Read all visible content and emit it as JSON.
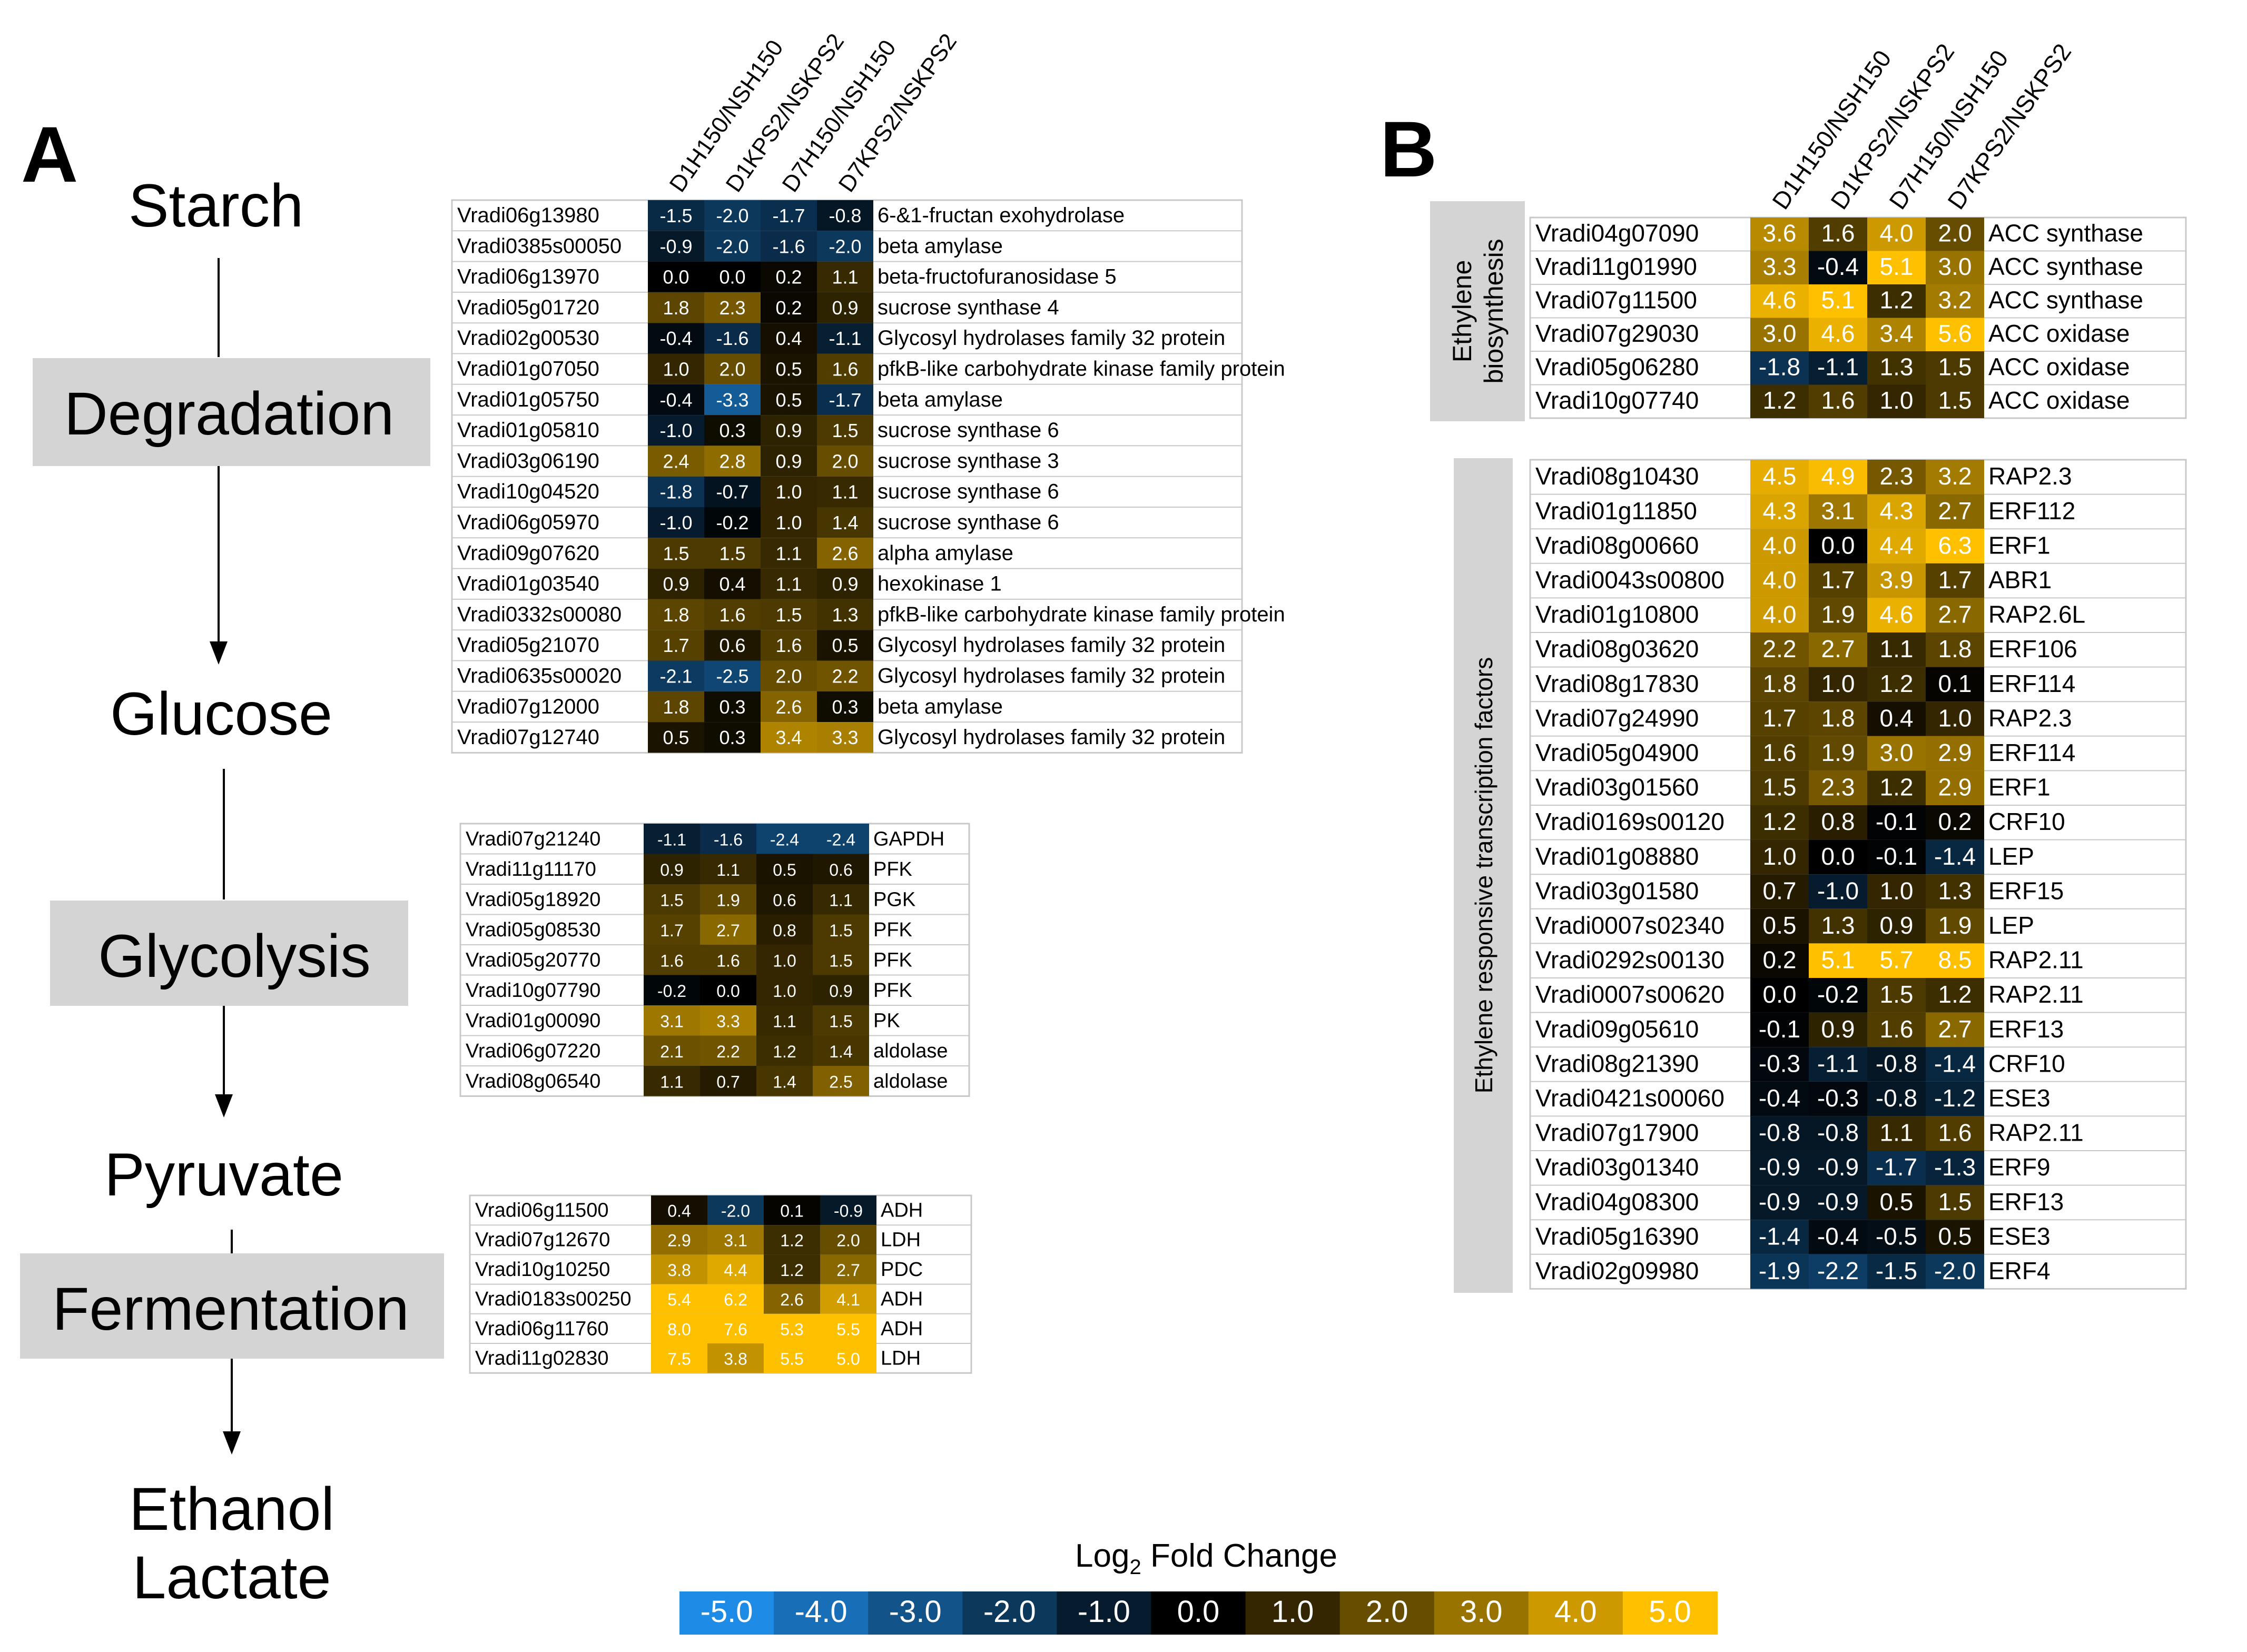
{
  "colors": {
    "negative": "#1e8be6",
    "zero": "#000000",
    "positive": "#ffc000",
    "pathway_box": "#d4d4d4",
    "border": "#c8c8c8"
  },
  "panel_a": {
    "label": "A",
    "pathway": {
      "starch": "Starch",
      "degradation": "Degradation",
      "glucose": "Glucose",
      "glycolysis": "Glycolysis",
      "pyruvate": "Pyruvate",
      "fermentation": "Fermentation",
      "ethanol": "Ethanol",
      "lactate": "Lactate"
    }
  },
  "panel_b": {
    "label": "B",
    "group1_label_line1": "Ethylene",
    "group1_label_line2": "biosynthesis",
    "group2_label": "Ethylene responsive transcription factors"
  },
  "columns": [
    "D1H150/NSH150",
    "D1KPS2/NSKPS2",
    "D7H150/NSH150",
    "D7KPS2/NSKPS2"
  ],
  "legend": {
    "title": "Log",
    "title_sub": "2",
    "title_rest": " Fold Change",
    "ticks": [
      "-5.0",
      "-4.0",
      "-3.0",
      "-2.0",
      "-1.0",
      "0.0",
      "1.0",
      "2.0",
      "3.0",
      "4.0",
      "5.0"
    ]
  },
  "chart_data": [
    {
      "type": "heatmap",
      "title": "Starch degradation",
      "columns": [
        "D1H150/NSH150",
        "D1KPS2/NSKPS2",
        "D7H150/NSH150",
        "D7KPS2/NSKPS2"
      ],
      "rows": [
        {
          "gene": "Vradi06g13980",
          "values": [
            -1.5,
            -2.0,
            -1.7,
            -0.8
          ],
          "annotation": "6-&1-fructan exohydrolase"
        },
        {
          "gene": "Vradi0385s00050",
          "values": [
            -0.9,
            -2.0,
            -1.6,
            -2.0
          ],
          "annotation": "beta amylase"
        },
        {
          "gene": "Vradi06g13970",
          "values": [
            0.0,
            0.0,
            0.2,
            1.1
          ],
          "annotation": "beta-fructofuranosidase 5"
        },
        {
          "gene": "Vradi05g01720",
          "values": [
            1.8,
            2.3,
            0.2,
            0.9
          ],
          "annotation": "sucrose synthase 4"
        },
        {
          "gene": "Vradi02g00530",
          "values": [
            -0.4,
            -1.6,
            0.4,
            -1.1
          ],
          "annotation": "Glycosyl hydrolases family 32 protein"
        },
        {
          "gene": "Vradi01g07050",
          "values": [
            1.0,
            2.0,
            0.5,
            1.6
          ],
          "annotation": "pfkB-like carbohydrate kinase family protein"
        },
        {
          "gene": "Vradi01g05750",
          "values": [
            -0.4,
            -3.3,
            0.5,
            -1.7
          ],
          "annotation": "beta amylase"
        },
        {
          "gene": "Vradi01g05810",
          "values": [
            -1.0,
            0.3,
            0.9,
            1.5
          ],
          "annotation": "sucrose synthase 6"
        },
        {
          "gene": "Vradi03g06190",
          "values": [
            2.4,
            2.8,
            0.9,
            2.0
          ],
          "annotation": "sucrose synthase 3"
        },
        {
          "gene": "Vradi10g04520",
          "values": [
            -1.8,
            -0.7,
            1.0,
            1.1
          ],
          "annotation": "sucrose synthase 6"
        },
        {
          "gene": "Vradi06g05970",
          "values": [
            -1.0,
            -0.2,
            1.0,
            1.4
          ],
          "annotation": "sucrose synthase 6"
        },
        {
          "gene": "Vradi09g07620",
          "values": [
            1.5,
            1.5,
            1.1,
            2.6
          ],
          "annotation": "alpha amylase"
        },
        {
          "gene": "Vradi01g03540",
          "values": [
            0.9,
            0.4,
            1.1,
            0.9
          ],
          "annotation": "hexokinase 1"
        },
        {
          "gene": "Vradi0332s00080",
          "values": [
            1.8,
            1.6,
            1.5,
            1.3
          ],
          "annotation": "pfkB-like carbohydrate kinase family protein"
        },
        {
          "gene": "Vradi05g21070",
          "values": [
            1.7,
            0.6,
            1.6,
            0.5
          ],
          "annotation": "Glycosyl hydrolases family 32 protein"
        },
        {
          "gene": "Vradi0635s00020",
          "values": [
            -2.1,
            -2.5,
            2.0,
            2.2
          ],
          "annotation": "Glycosyl hydrolases family 32 protein"
        },
        {
          "gene": "Vradi07g12000",
          "values": [
            1.8,
            0.3,
            2.6,
            0.3
          ],
          "annotation": "beta amylase"
        },
        {
          "gene": "Vradi07g12740",
          "values": [
            0.5,
            0.3,
            3.4,
            3.3
          ],
          "annotation": "Glycosyl hydrolases family 32 protein"
        }
      ]
    },
    {
      "type": "heatmap",
      "title": "Glycolysis",
      "columns": [
        "D1H150/NSH150",
        "D1KPS2/NSKPS2",
        "D7H150/NSH150",
        "D7KPS2/NSKPS2"
      ],
      "rows": [
        {
          "gene": "Vradi07g21240",
          "values": [
            -1.1,
            -1.6,
            -2.4,
            -2.4
          ],
          "annotation": "GAPDH"
        },
        {
          "gene": "Vradi11g11170",
          "values": [
            0.9,
            1.1,
            0.5,
            0.6
          ],
          "annotation": "PFK"
        },
        {
          "gene": "Vradi05g18920",
          "values": [
            1.5,
            1.9,
            0.6,
            1.1
          ],
          "annotation": "PGK"
        },
        {
          "gene": "Vradi05g08530",
          "values": [
            1.7,
            2.7,
            0.8,
            1.5
          ],
          "annotation": "PFK"
        },
        {
          "gene": "Vradi05g20770",
          "values": [
            1.6,
            1.6,
            1.0,
            1.5
          ],
          "annotation": "PFK"
        },
        {
          "gene": "Vradi10g07790",
          "values": [
            -0.2,
            0.0,
            1.0,
            0.9
          ],
          "annotation": "PFK"
        },
        {
          "gene": "Vradi01g00090",
          "values": [
            3.1,
            3.3,
            1.1,
            1.5
          ],
          "annotation": "PK"
        },
        {
          "gene": "Vradi06g07220",
          "values": [
            2.1,
            2.2,
            1.2,
            1.4
          ],
          "annotation": "aldolase"
        },
        {
          "gene": "Vradi08g06540",
          "values": [
            1.1,
            0.7,
            1.4,
            2.5
          ],
          "annotation": "aldolase"
        }
      ]
    },
    {
      "type": "heatmap",
      "title": "Fermentation",
      "columns": [
        "D1H150/NSH150",
        "D1KPS2/NSKPS2",
        "D7H150/NSH150",
        "D7KPS2/NSKPS2"
      ],
      "rows": [
        {
          "gene": "Vradi06g11500",
          "values": [
            0.4,
            -2.0,
            0.1,
            -0.9
          ],
          "annotation": "ADH"
        },
        {
          "gene": "Vradi07g12670",
          "values": [
            2.9,
            3.1,
            1.2,
            2.0
          ],
          "annotation": "LDH"
        },
        {
          "gene": "Vradi10g10250",
          "values": [
            3.8,
            4.4,
            1.2,
            2.7
          ],
          "annotation": "PDC"
        },
        {
          "gene": "Vradi0183s00250",
          "values": [
            5.4,
            6.2,
            2.6,
            4.1
          ],
          "annotation": "ADH"
        },
        {
          "gene": "Vradi06g11760",
          "values": [
            8.0,
            7.6,
            5.3,
            5.5
          ],
          "annotation": "ADH"
        },
        {
          "gene": "Vradi11g02830",
          "values": [
            7.5,
            3.8,
            5.5,
            5.0
          ],
          "annotation": "LDH"
        }
      ]
    },
    {
      "type": "heatmap",
      "title": "Ethylene biosynthesis",
      "columns": [
        "D1H150/NSH150",
        "D1KPS2/NSKPS2",
        "D7H150/NSH150",
        "D7KPS2/NSKPS2"
      ],
      "rows": [
        {
          "gene": "Vradi04g07090",
          "values": [
            3.6,
            1.6,
            4.0,
            2.0
          ],
          "annotation": "ACC synthase"
        },
        {
          "gene": "Vradi11g01990",
          "values": [
            3.3,
            -0.4,
            5.1,
            3.0
          ],
          "annotation": "ACC synthase"
        },
        {
          "gene": "Vradi07g11500",
          "values": [
            4.6,
            5.1,
            1.2,
            3.2
          ],
          "annotation": "ACC synthase"
        },
        {
          "gene": "Vradi07g29030",
          "values": [
            3.0,
            4.6,
            3.4,
            5.6
          ],
          "annotation": "ACC oxidase"
        },
        {
          "gene": "Vradi05g06280",
          "values": [
            -1.8,
            -1.1,
            1.3,
            1.5
          ],
          "annotation": "ACC oxidase"
        },
        {
          "gene": "Vradi10g07740",
          "values": [
            1.2,
            1.6,
            1.0,
            1.5
          ],
          "annotation": "ACC oxidase"
        }
      ]
    },
    {
      "type": "heatmap",
      "title": "Ethylene responsive transcription factors",
      "columns": [
        "D1H150/NSH150",
        "D1KPS2/NSKPS2",
        "D7H150/NSH150",
        "D7KPS2/NSKPS2"
      ],
      "rows": [
        {
          "gene": "Vradi08g10430",
          "values": [
            4.5,
            4.9,
            2.3,
            3.2
          ],
          "annotation": "RAP2.3"
        },
        {
          "gene": "Vradi01g11850",
          "values": [
            4.3,
            3.1,
            4.3,
            2.7
          ],
          "annotation": "ERF112"
        },
        {
          "gene": "Vradi08g00660",
          "values": [
            4.0,
            0.0,
            4.4,
            6.3
          ],
          "annotation": "ERF1"
        },
        {
          "gene": "Vradi0043s00800",
          "values": [
            4.0,
            1.7,
            3.9,
            1.7
          ],
          "annotation": "ABR1"
        },
        {
          "gene": "Vradi01g10800",
          "values": [
            4.0,
            1.9,
            4.6,
            2.7
          ],
          "annotation": "RAP2.6L"
        },
        {
          "gene": "Vradi08g03620",
          "values": [
            2.2,
            2.7,
            1.1,
            1.8
          ],
          "annotation": "ERF106"
        },
        {
          "gene": "Vradi08g17830",
          "values": [
            1.8,
            1.0,
            1.2,
            0.1
          ],
          "annotation": "ERF114"
        },
        {
          "gene": "Vradi07g24990",
          "values": [
            1.7,
            1.8,
            0.4,
            1.0
          ],
          "annotation": "RAP2.3"
        },
        {
          "gene": "Vradi05g04900",
          "values": [
            1.6,
            1.9,
            3.0,
            2.9
          ],
          "annotation": "ERF114"
        },
        {
          "gene": "Vradi03g01560",
          "values": [
            1.5,
            2.3,
            1.2,
            2.9
          ],
          "annotation": "ERF1"
        },
        {
          "gene": "Vradi0169s00120",
          "values": [
            1.2,
            0.8,
            -0.1,
            0.2
          ],
          "annotation": "CRF10"
        },
        {
          "gene": "Vradi01g08880",
          "values": [
            1.0,
            0.0,
            -0.1,
            -1.4
          ],
          "annotation": "LEP"
        },
        {
          "gene": "Vradi03g01580",
          "values": [
            0.7,
            -1.0,
            1.0,
            1.3
          ],
          "annotation": "ERF15"
        },
        {
          "gene": "Vradi0007s02340",
          "values": [
            0.5,
            1.3,
            0.9,
            1.9
          ],
          "annotation": "LEP"
        },
        {
          "gene": "Vradi0292s00130",
          "values": [
            0.2,
            5.1,
            5.7,
            8.5
          ],
          "annotation": "RAP2.11"
        },
        {
          "gene": "Vradi0007s00620",
          "values": [
            0.0,
            -0.2,
            1.5,
            1.2
          ],
          "annotation": "RAP2.11"
        },
        {
          "gene": "Vradi09g05610",
          "values": [
            -0.1,
            0.9,
            1.6,
            2.7
          ],
          "annotation": "ERF13"
        },
        {
          "gene": "Vradi08g21390",
          "values": [
            -0.3,
            -1.1,
            -0.8,
            -1.4
          ],
          "annotation": "CRF10"
        },
        {
          "gene": "Vradi0421s00060",
          "values": [
            -0.4,
            -0.3,
            -0.8,
            -1.2
          ],
          "annotation": "ESE3"
        },
        {
          "gene": "Vradi07g17900",
          "values": [
            -0.8,
            -0.8,
            1.1,
            1.6
          ],
          "annotation": "RAP2.11"
        },
        {
          "gene": "Vradi03g01340",
          "values": [
            -0.9,
            -0.9,
            -1.7,
            -1.3
          ],
          "annotation": "ERF9"
        },
        {
          "gene": "Vradi04g08300",
          "values": [
            -0.9,
            -0.9,
            0.5,
            1.5
          ],
          "annotation": "ERF13"
        },
        {
          "gene": "Vradi05g16390",
          "values": [
            -1.4,
            -0.4,
            -0.5,
            0.5
          ],
          "annotation": "ESE3"
        },
        {
          "gene": "Vradi02g09980",
          "values": [
            -1.9,
            -2.2,
            -1.5,
            -2.0
          ],
          "annotation": "ERF4"
        }
      ]
    }
  ]
}
